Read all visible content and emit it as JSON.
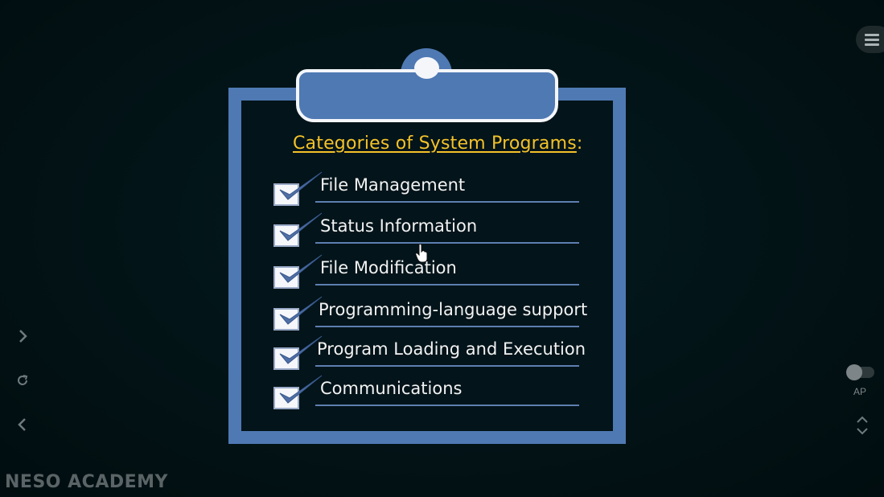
{
  "slide": {
    "heading": "Categories of System Programs",
    "heading_suffix": ":",
    "items": [
      {
        "label": "File Management"
      },
      {
        "label": "Status Information"
      },
      {
        "label": "File Modification"
      },
      {
        "label": "Programming-language support"
      },
      {
        "label": "Program Loading and Execution"
      },
      {
        "label": "Communications"
      }
    ]
  },
  "player": {
    "autoplay_label": "AP",
    "next_icon": "chevron-right-icon",
    "replay_icon": "replay-icon",
    "prev_icon": "chevron-left-icon",
    "menu_icon": "hamburger-menu-icon",
    "speed_icon": "up-down-chevron-icon"
  },
  "watermark": "NESO ACADEMY",
  "colors": {
    "board_blue": "#4f79b3",
    "heading_yellow": "#f4c228",
    "background": "#021114"
  }
}
